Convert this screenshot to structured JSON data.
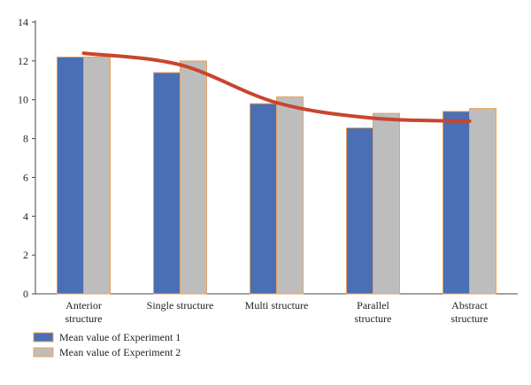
{
  "chart_data": {
    "type": "bar",
    "categories": [
      [
        "Anterior",
        "structure"
      ],
      [
        "Single structure"
      ],
      [
        "Multi structure"
      ],
      [
        "Parallel",
        "structure"
      ],
      [
        "Abstract",
        "structure"
      ]
    ],
    "series": [
      {
        "name": "Mean value of Experiment 1",
        "values": [
          12.2,
          11.4,
          9.8,
          8.55,
          9.4
        ],
        "color": "#4a6fb5"
      },
      {
        "name": "Mean value of Experiment 2",
        "values": [
          12.2,
          12.0,
          10.15,
          9.3,
          9.55
        ],
        "color": "#bdbdbd"
      }
    ],
    "trend_line": {
      "values": [
        12.4,
        11.8,
        9.85,
        9.05,
        8.9
      ],
      "color": "#c8452e"
    },
    "bar_border_color": "#e8a35a",
    "ylim": [
      0,
      14
    ],
    "yticks": [
      "0",
      "2",
      "4",
      "6",
      "8",
      "10",
      "12",
      "14"
    ],
    "grid": false,
    "legend_position": "bottom-left",
    "title": "",
    "xlabel": "",
    "ylabel": ""
  }
}
